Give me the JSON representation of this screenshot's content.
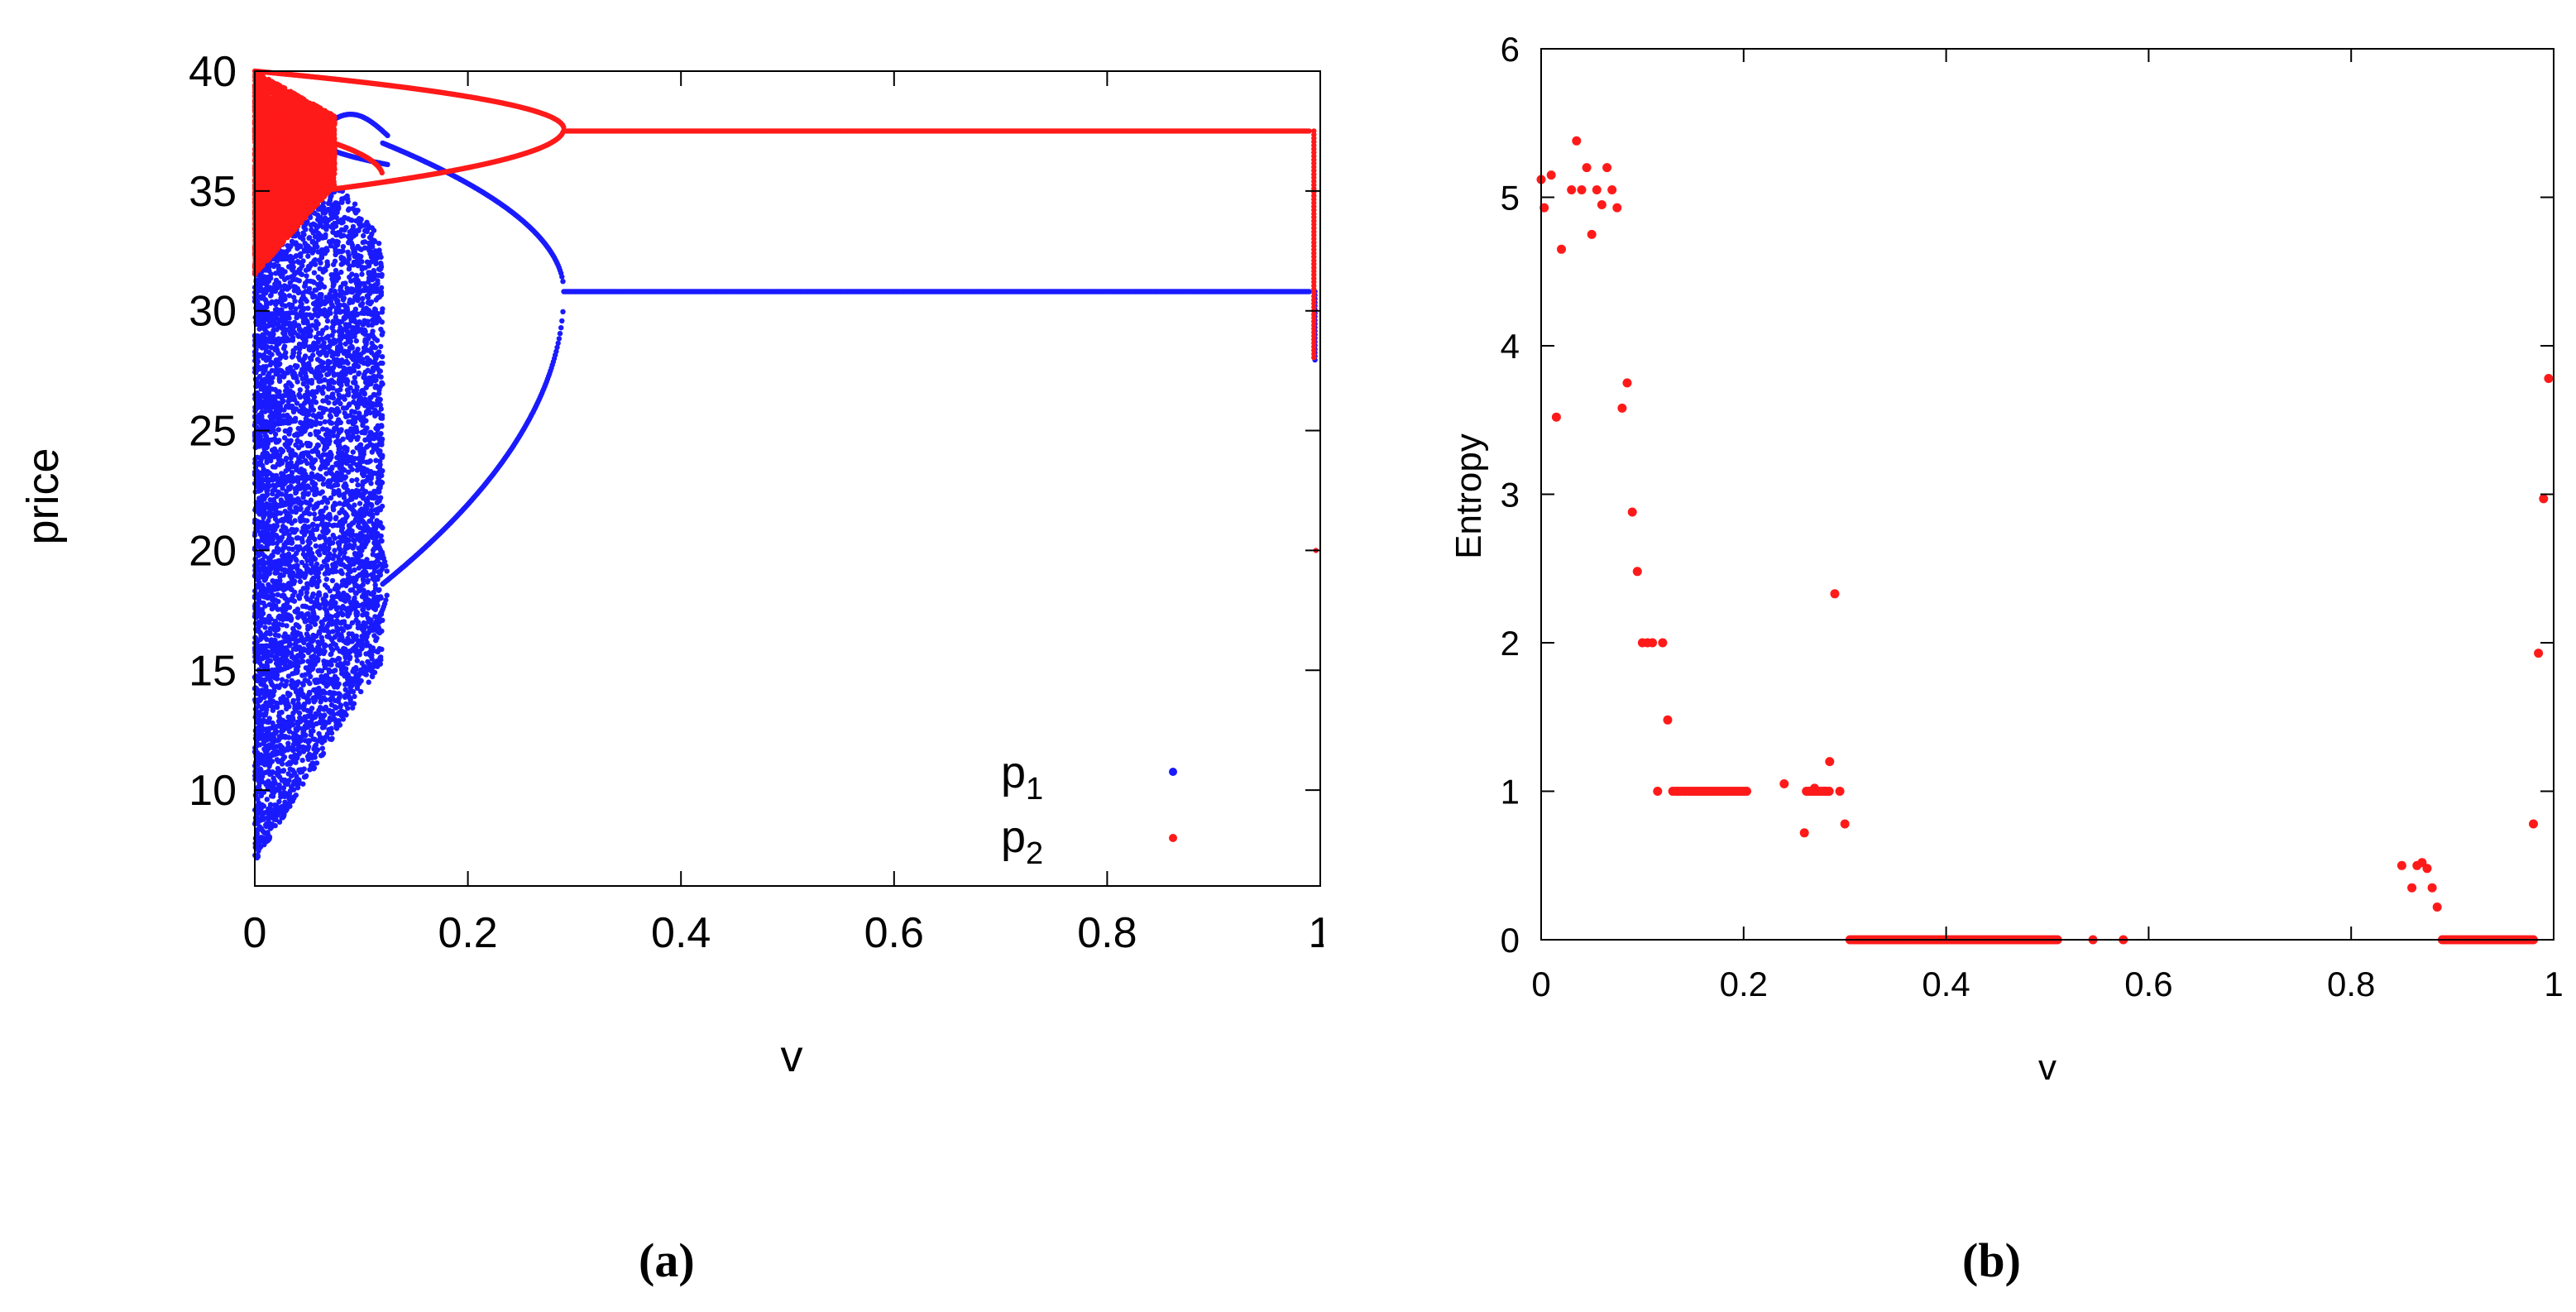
{
  "colors": {
    "p1": "#1a1aff",
    "p2": "#ff1a1a",
    "entropy": "#ff1a1a",
    "axis": "#000000"
  },
  "captions": {
    "a": "(a)",
    "b": "(b)"
  },
  "chart_data": [
    {
      "type": "scatter",
      "title": "",
      "xlabel": "v",
      "ylabel": "price",
      "xlim": [
        0,
        1
      ],
      "ylim": [
        6,
        40
      ],
      "xticks": [
        "0",
        "0.2",
        "0.4",
        "0.6",
        "0.8",
        "1"
      ],
      "yticks": [
        "10",
        "15",
        "20",
        "25",
        "30",
        "35",
        "40"
      ],
      "legend": {
        "position": "bottom-right",
        "entries": [
          {
            "main": "p",
            "sub": "1"
          },
          {
            "main": "p",
            "sub": "2"
          }
        ]
      },
      "series": [
        {
          "name": "p1",
          "color": "#1a1aff",
          "description": "bifurcation diagram: chaotic band for v<0.12, period-4 then period-2 branches, fixed cycle 30.8/37.5 for 0.29<v<0.99",
          "points": [
            [
              0.3,
              30.8
            ],
            [
              0.4,
              30.8
            ],
            [
              0.5,
              30.8
            ],
            [
              0.6,
              30.8
            ],
            [
              0.7,
              30.8
            ],
            [
              0.8,
              30.8
            ],
            [
              0.9,
              30.8
            ],
            [
              0.98,
              30.8
            ],
            [
              0.995,
              28
            ]
          ]
        },
        {
          "name": "p2",
          "color": "#ff1a1a",
          "description": "chaotic region 31.5-40 for v<0.07, branches merge near v=0.29 at 37.5, constant 37.5 until v=0.99, drop to ~28 and point at 20 near v=1",
          "points": [
            [
              0.3,
              37.5
            ],
            [
              0.4,
              37.5
            ],
            [
              0.5,
              37.5
            ],
            [
              0.6,
              37.5
            ],
            [
              0.7,
              37.5
            ],
            [
              0.8,
              37.5
            ],
            [
              0.9,
              37.5
            ],
            [
              0.98,
              37.5
            ],
            [
              0.995,
              20
            ]
          ]
        }
      ]
    },
    {
      "type": "scatter",
      "title": "",
      "xlabel": "v",
      "ylabel": "Entropy",
      "xlim": [
        0,
        1
      ],
      "ylim": [
        0,
        6
      ],
      "xticks": [
        "0",
        "0.2",
        "0.4",
        "0.6",
        "0.8",
        "1"
      ],
      "yticks": [
        "0",
        "1",
        "2",
        "3",
        "4",
        "5",
        "6"
      ],
      "series": [
        {
          "name": "Entropy",
          "color": "#ff1a1a",
          "x": [
            0.0,
            0.003,
            0.01,
            0.015,
            0.02,
            0.03,
            0.035,
            0.04,
            0.045,
            0.05,
            0.055,
            0.06,
            0.065,
            0.07,
            0.075,
            0.08,
            0.085,
            0.09,
            0.095,
            0.1,
            0.105,
            0.11,
            0.115,
            0.12,
            0.125,
            0.13,
            0.26,
            0.27,
            0.28,
            0.285,
            0.29,
            0.295,
            0.3,
            0.24,
            0.545,
            0.575,
            0.85,
            0.86,
            0.865,
            0.87,
            0.875,
            0.88,
            0.885,
            0.98,
            0.985,
            0.99,
            0.995
          ],
          "y": [
            5.12,
            4.93,
            5.15,
            3.52,
            4.65,
            5.05,
            5.38,
            5.05,
            5.2,
            4.75,
            5.05,
            4.95,
            5.2,
            5.05,
            4.93,
            3.58,
            3.75,
            2.88,
            2.48,
            2.0,
            2.0,
            2.0,
            1.0,
            2.0,
            1.48,
            1.0,
            0.72,
            1.02,
            1.0,
            1.2,
            2.33,
            1.0,
            0.78,
            1.05,
            0.0,
            0.0,
            0.5,
            0.35,
            0.5,
            0.52,
            0.48,
            0.35,
            0.22,
            0.78,
            1.93,
            2.97,
            3.78
          ],
          "runs": [
            {
              "x0": 0.133,
              "x1": 0.205,
              "y": 1.0
            },
            {
              "x0": 0.262,
              "x1": 0.285,
              "y": 1.0
            },
            {
              "x0": 0.305,
              "x1": 0.51,
              "y": 0.0
            },
            {
              "x0": 0.89,
              "x1": 0.98,
              "y": 0.0
            }
          ]
        }
      ]
    }
  ]
}
